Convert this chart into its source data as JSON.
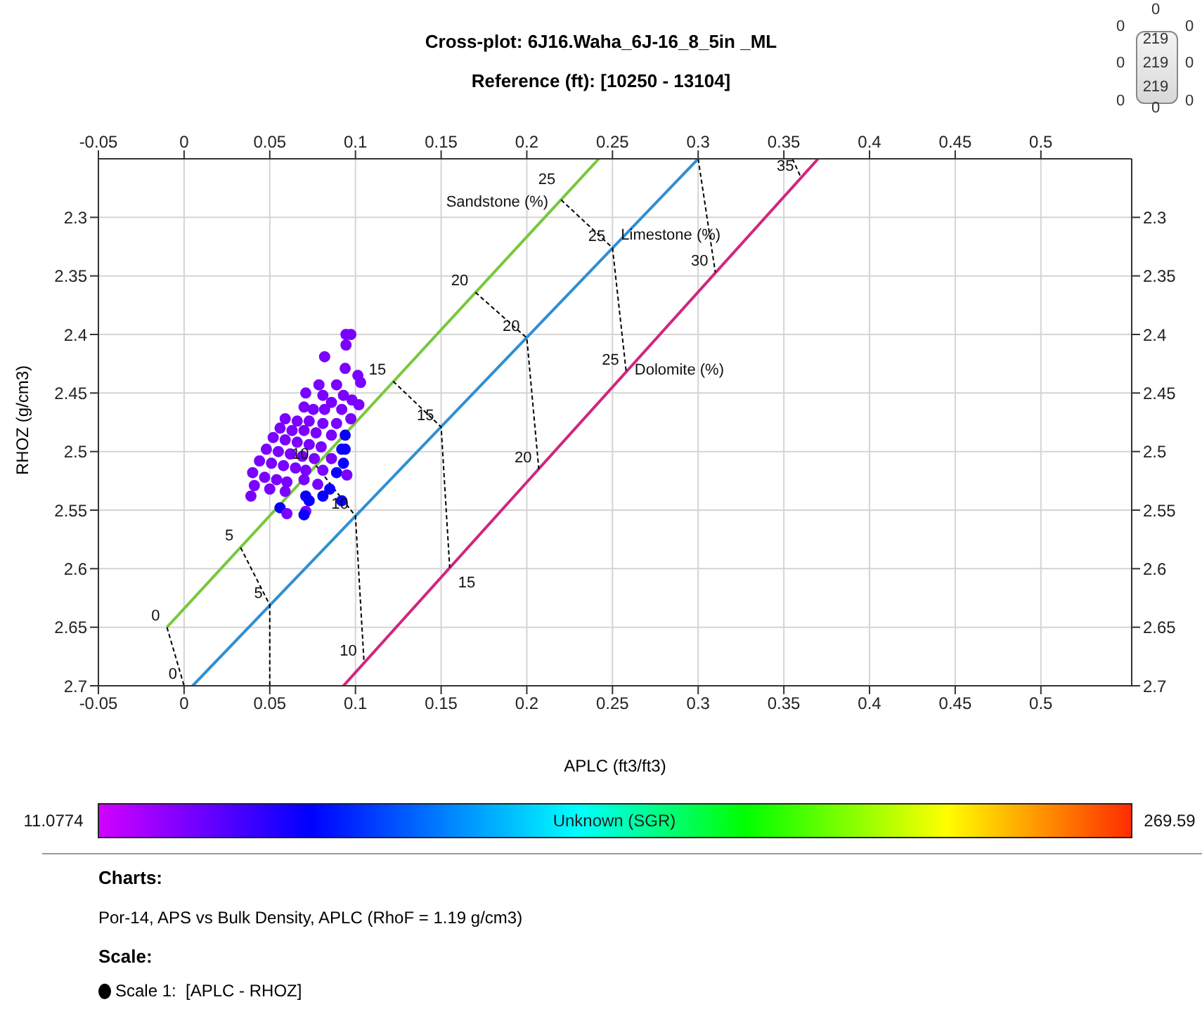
{
  "chart_data": {
    "type": "scatter",
    "title": "Cross-plot: 6J16.Waha_6J-16_8_5in _ML",
    "subtitle": "Reference (ft): [10250 - 13104]",
    "xlabel": "APLC (ft3/ft3)",
    "ylabel": "RHOZ (g/cm3)",
    "clabel": "Unknown (SGR)",
    "clim": [
      11.0774,
      269.59
    ],
    "cticks": [
      11.0774,
      269.59
    ],
    "xlim": [
      -0.05,
      0.553
    ],
    "xticks": [
      -0.05,
      0,
      0.05,
      0.1,
      0.15,
      0.2,
      0.25,
      0.3,
      0.35,
      0.4,
      0.45,
      0.5
    ],
    "x2lim": [
      -0.05,
      0.553
    ],
    "x2ticks": [
      -0.05,
      0,
      0.05,
      0.1,
      0.15,
      0.2,
      0.25,
      0.3,
      0.35,
      0.4,
      0.45,
      0.5
    ],
    "ylim": [
      2.7,
      2.25
    ],
    "yticks": [
      2.3,
      2.35,
      2.4,
      2.45,
      2.5,
      2.55,
      2.6,
      2.65,
      2.7
    ],
    "y2lim": [
      2.7,
      2.25
    ],
    "y2ticks": [
      2.3,
      2.35,
      2.4,
      2.45,
      2.5,
      2.55,
      2.6,
      2.65,
      2.7
    ],
    "grid": true,
    "marker": "circle",
    "series": [
      {
        "x": [
          0.0945,
          0.0973,
          0.0945,
          0.082,
          0.094,
          0.1014,
          0.103,
          0.0787,
          0.089,
          0.093,
          0.098,
          0.102,
          0.071,
          0.081,
          0.086,
          0.07,
          0.0754,
          0.082,
          0.092,
          0.0973,
          0.059,
          0.066,
          0.073,
          0.081,
          0.089,
          0.056,
          0.063,
          0.07,
          0.077,
          0.086,
          0.094,
          0.052,
          0.059,
          0.066,
          0.073,
          0.08,
          0.092,
          0.048,
          0.055,
          0.062,
          0.069,
          0.076,
          0.086,
          0.094,
          0.044,
          0.051,
          0.058,
          0.065,
          0.071,
          0.081,
          0.089,
          0.095,
          0.04,
          0.047,
          0.054,
          0.06,
          0.07,
          0.078,
          0.085,
          0.041,
          0.039,
          0.05,
          0.059,
          0.071,
          0.081,
          0.092,
          0.056,
          0.06,
          0.071,
          0.07,
          0.073,
          0.093
        ],
        "values": [
          2.4,
          2.4,
          2.409,
          2.419,
          2.429,
          2.435,
          2.441,
          2.443,
          2.443,
          2.452,
          2.456,
          2.46,
          2.45,
          2.452,
          2.458,
          2.462,
          2.464,
          2.464,
          2.464,
          2.472,
          2.472,
          2.474,
          2.474,
          2.476,
          2.476,
          2.48,
          2.482,
          2.482,
          2.484,
          2.486,
          2.486,
          2.488,
          2.49,
          2.492,
          2.494,
          2.496,
          2.498,
          2.498,
          2.5,
          2.502,
          2.504,
          2.506,
          2.506,
          2.498,
          2.508,
          2.51,
          2.512,
          2.514,
          2.516,
          2.516,
          2.518,
          2.52,
          2.518,
          2.522,
          2.524,
          2.526,
          2.524,
          2.528,
          2.532,
          2.529,
          2.538,
          2.532,
          2.534,
          2.538,
          2.538,
          2.542,
          2.548,
          2.553,
          2.551,
          2.554,
          2.542,
          2.51
        ],
        "colors": [
          "#7a00ff",
          "#7a00ff",
          "#7a00ff",
          "#7a00ff",
          "#7a00ff",
          "#7a00ff",
          "#7a00ff",
          "#7a00ff",
          "#7a00ff",
          "#7a00ff",
          "#7a00ff",
          "#7a00ff",
          "#7a00ff",
          "#7a00ff",
          "#7a00ff",
          "#7a00ff",
          "#7a00ff",
          "#7a00ff",
          "#7a00ff",
          "#7a00ff",
          "#7a00ff",
          "#7a00ff",
          "#7a00ff",
          "#7a00ff",
          "#7a00ff",
          "#7a00ff",
          "#7a00ff",
          "#7a00ff",
          "#7a00ff",
          "#7a00ff",
          "#0b00ff",
          "#7a00ff",
          "#7a00ff",
          "#7a00ff",
          "#7a00ff",
          "#7a00ff",
          "#0b00ff",
          "#7a00ff",
          "#7a00ff",
          "#7a00ff",
          "#7a00ff",
          "#7a00ff",
          "#7a00ff",
          "#0b00ff",
          "#7a00ff",
          "#7a00ff",
          "#7a00ff",
          "#7a00ff",
          "#7a00ff",
          "#7a00ff",
          "#0b00ff",
          "#7a00ff",
          "#7a00ff",
          "#7a00ff",
          "#7a00ff",
          "#7a00ff",
          "#7a00ff",
          "#7a00ff",
          "#0b00ff",
          "#7a00ff",
          "#7a00ff",
          "#7a00ff",
          "#7a00ff",
          "#0b00ff",
          "#0b00ff",
          "#0b00ff",
          "#0b00ff",
          "#7a00ff",
          "#7a00ff",
          "#0b00ff",
          "#0b00ff",
          "#0b00ff"
        ],
        "cvalues": [
          42,
          42,
          42,
          42,
          42,
          42,
          42,
          42,
          42,
          42,
          42,
          42,
          42,
          42,
          42,
          42,
          42,
          42,
          42,
          42,
          42,
          42,
          42,
          42,
          42,
          42,
          42,
          42,
          42,
          42,
          68,
          42,
          42,
          42,
          42,
          42,
          68,
          42,
          42,
          42,
          42,
          42,
          42,
          68,
          42,
          42,
          42,
          42,
          42,
          42,
          68,
          42,
          42,
          42,
          42,
          42,
          42,
          42,
          68,
          42,
          42,
          42,
          42,
          68,
          68,
          68,
          68,
          42,
          42,
          68,
          68,
          68
        ]
      },
      {
        "type": "line",
        "marker": "none",
        "color": "#78c83c",
        "x": [
          -0.01,
          0.242
        ],
        "values": [
          2.65,
          2.25
        ]
      },
      {
        "type": "line",
        "marker": "none",
        "color": "#2f8fd2",
        "x": [
          0.005,
          0.3
        ],
        "values": [
          2.7,
          2.25
        ]
      },
      {
        "type": "line",
        "marker": "none",
        "color": "#d0267f",
        "x": [
          0.093,
          0.37
        ],
        "values": [
          2.7,
          2.25
        ]
      },
      {
        "type": "line",
        "marker": "none",
        "line_style": "dashed",
        "color": "#000000",
        "x": [
          -0.01,
          0.0
        ],
        "values": [
          2.65,
          2.7
        ]
      },
      {
        "type": "line",
        "marker": "none",
        "line_style": "dashed",
        "color": "#000000",
        "x": [
          0.033,
          0.05,
          0.05
        ],
        "values": [
          2.582,
          2.631,
          2.7
        ]
      },
      {
        "type": "line",
        "marker": "none",
        "line_style": "dashed",
        "color": "#000000",
        "x": [
          0.077,
          0.1,
          0.105
        ],
        "values": [
          2.512,
          2.555,
          2.68
        ]
      },
      {
        "type": "line",
        "marker": "none",
        "line_style": "dashed",
        "color": "#000000",
        "x": [
          0.122,
          0.15,
          0.155
        ],
        "values": [
          2.44,
          2.479,
          2.599
        ]
      },
      {
        "type": "line",
        "marker": "none",
        "line_style": "dashed",
        "color": "#000000",
        "x": [
          0.17,
          0.2,
          0.207
        ],
        "values": [
          2.364,
          2.403,
          2.515
        ]
      },
      {
        "type": "line",
        "marker": "none",
        "line_style": "dashed",
        "color": "#000000",
        "x": [
          0.22,
          0.25,
          0.258
        ],
        "values": [
          2.285,
          2.326,
          2.432
        ]
      },
      {
        "type": "line",
        "marker": "none",
        "line_style": "dashed",
        "color": "#000000",
        "x": [
          0.3,
          0.31
        ],
        "values": [
          2.25,
          2.347
        ]
      },
      {
        "type": "line",
        "marker": "none",
        "line_style": "dashed",
        "color": "#000000",
        "x": [
          0.355,
          0.36
        ],
        "values": [
          2.25,
          2.266
        ]
      }
    ],
    "annotations": [
      "Charts:",
      "Por-14, APS vs Bulk Density, APLC (RhoF = 1.19 g/cm3)",
      "Scale:",
      "Scale 1:  [APLC - RHOZ]",
      "0",
      "0",
      "0",
      "219",
      "0",
      "219",
      "0",
      "219",
      "0",
      "0",
      "0",
      {
        "text": "Sandstone (%)",
        "x": 0.22,
        "y": 2.285
      },
      {
        "text": "Limestone (%)",
        "x": 0.25,
        "y": 2.326
      },
      {
        "text": "Dolomite (%)",
        "x": 0.258,
        "y": 2.432
      },
      {
        "text": "0",
        "x": -0.01,
        "y": 2.65
      },
      {
        "text": "5",
        "x": 0.033,
        "y": 2.582
      },
      {
        "text": "10",
        "x": 0.077,
        "y": 2.512
      },
      {
        "text": "15",
        "x": 0.122,
        "y": 2.44
      },
      {
        "text": "20",
        "x": 0.17,
        "y": 2.364
      },
      {
        "text": "25",
        "x": 0.22,
        "y": 2.285
      },
      {
        "text": "0",
        "x": 0.0,
        "y": 2.7
      },
      {
        "text": "5",
        "x": 0.05,
        "y": 2.631
      },
      {
        "text": "10",
        "x": 0.1,
        "y": 2.555
      },
      {
        "text": "15",
        "x": 0.15,
        "y": 2.479
      },
      {
        "text": "20",
        "x": 0.2,
        "y": 2.403
      },
      {
        "text": "25",
        "x": 0.25,
        "y": 2.326
      },
      {
        "text": "10",
        "x": 0.105,
        "y": 2.68
      },
      {
        "text": "15",
        "x": 0.155,
        "y": 2.599
      },
      {
        "text": "20",
        "x": 0.207,
        "y": 2.515
      },
      {
        "text": "25",
        "x": 0.258,
        "y": 2.432
      },
      {
        "text": "30",
        "x": 0.31,
        "y": 2.347
      },
      {
        "text": "35",
        "x": 0.36,
        "y": 2.266
      }
    ]
  }
}
